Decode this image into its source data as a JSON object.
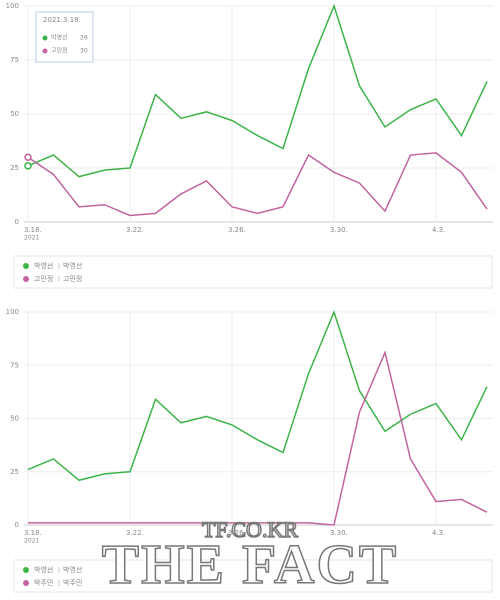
{
  "chart_data": [
    {
      "type": "line",
      "categories": [
        "3.18.",
        null,
        null,
        null,
        "3.22.",
        null,
        null,
        null,
        "3.26.",
        null,
        null,
        null,
        "3.30.",
        null,
        null,
        null,
        "4.3.",
        null,
        null
      ],
      "x_sublabel": "2021",
      "ylim": [
        0,
        100
      ],
      "yticks": [
        0,
        25,
        50,
        75,
        100
      ],
      "grid": true,
      "series": [
        {
          "name": "박영선",
          "detail": "박영선",
          "color": "#3cb449",
          "values": [
            26,
            31,
            21,
            24,
            25,
            59,
            48,
            51,
            47,
            40,
            34,
            71,
            100,
            63,
            44,
            52,
            57,
            40,
            65
          ]
        },
        {
          "name": "고민정",
          "detail": "고민정",
          "color": "#c2649f",
          "values": [
            30,
            22,
            7,
            8,
            3,
            4,
            13,
            19,
            7,
            4,
            7,
            31,
            23,
            18,
            5,
            31,
            32,
            23,
            6
          ]
        }
      ],
      "tooltip": {
        "title": "2021.3.18.",
        "values": [
          26,
          30
        ]
      }
    },
    {
      "type": "line",
      "categories": [
        "3.18.",
        null,
        null,
        null,
        "3.22.",
        null,
        null,
        null,
        "3.26.",
        null,
        null,
        null,
        "3.30.",
        null,
        null,
        null,
        "4.3.",
        null,
        null
      ],
      "x_sublabel": "2021",
      "ylim": [
        0,
        100
      ],
      "yticks": [
        0,
        25,
        50,
        75,
        100
      ],
      "grid": true,
      "series": [
        {
          "name": "박영선",
          "detail": "박영선",
          "color": "#3cb449",
          "values": [
            26,
            31,
            21,
            24,
            25,
            59,
            48,
            51,
            47,
            40,
            34,
            71,
            100,
            63,
            44,
            52,
            57,
            40,
            65
          ]
        },
        {
          "name": "박주민",
          "detail": "박주민",
          "color": "#c2649f",
          "values": [
            1,
            1,
            1,
            1,
            1,
            1,
            1,
            1,
            1,
            1,
            1,
            1,
            0,
            53,
            81,
            31,
            11,
            12,
            6
          ]
        }
      ]
    }
  ],
  "watermark": {
    "site": "TF.CO.KR",
    "text": "THE FACT"
  }
}
